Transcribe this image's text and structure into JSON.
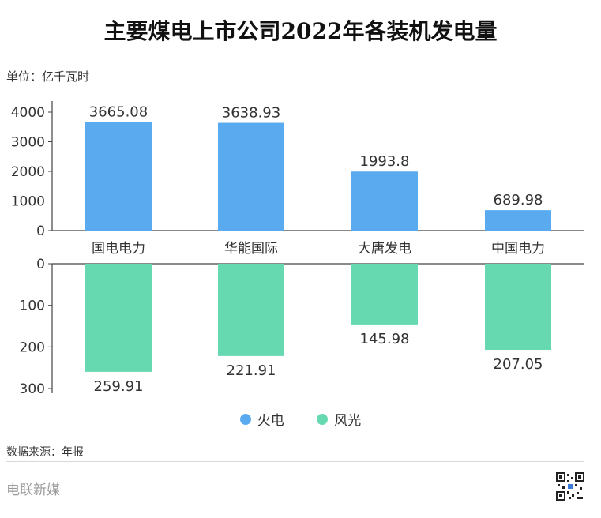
{
  "title": "主要煤电上市公司2022年各装机发电量",
  "unit": "单位：亿千瓦时",
  "source": "数据来源：年报",
  "footer_brand": "电联新媒",
  "colors": {
    "thermal": "#5aaaf0",
    "wind_solar": "#66d9b0",
    "axis": "#444444"
  },
  "chart_data": {
    "type": "bar",
    "categories": [
      "国电电力",
      "华能国际",
      "大唐发电",
      "中国电力"
    ],
    "series": [
      {
        "name": "火电",
        "values": [
          3665.08,
          3638.93,
          1993.8,
          689.98
        ],
        "labels": [
          "3665.08",
          "3638.93",
          "1993.8",
          "689.98"
        ],
        "color": "#5aaaf0"
      },
      {
        "name": "风光",
        "values": [
          259.91,
          221.91,
          145.98,
          207.05
        ],
        "labels": [
          "259.91",
          "221.91",
          "145.98",
          "207.05"
        ],
        "color": "#66d9b0"
      }
    ],
    "top_axis": {
      "ylim": [
        0,
        4000
      ],
      "ticks": [
        "0",
        "1000",
        "2000",
        "3000",
        "4000"
      ]
    },
    "bottom_axis": {
      "ylim": [
        0,
        300
      ],
      "ticks": [
        "0",
        "100",
        "200",
        "300"
      ],
      "reversed": true
    },
    "legend_position": "bottom-center",
    "grid": false
  }
}
